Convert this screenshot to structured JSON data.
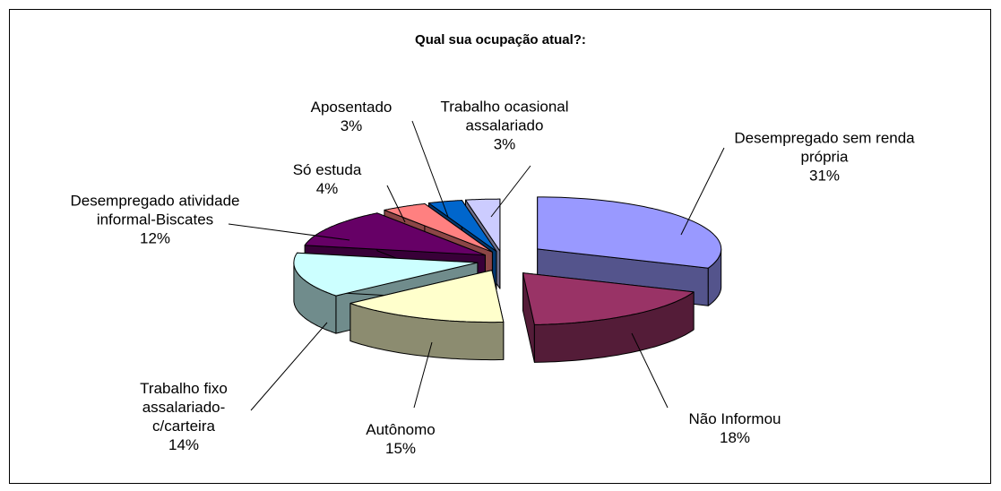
{
  "chart_data": {
    "type": "pie",
    "title": "Qual sua ocupação atual?:",
    "categories": [
      "Desempregado sem renda própria",
      "Não Informou",
      "Autônomo",
      "Trabalho fixo assalariado-c/carteira",
      "Desempregado atividade informal-Biscates",
      "Só estuda",
      "Aposentado",
      "Trabalho ocasional assalariado"
    ],
    "values": [
      31,
      18,
      15,
      14,
      12,
      4,
      3,
      3
    ],
    "value_labels": [
      "31%",
      "18%",
      "15%",
      "14%",
      "12%",
      "4%",
      "3%",
      "3%"
    ],
    "colors": [
      "#9999ff",
      "#993366",
      "#ffffcc",
      "#ccffff",
      "#660066",
      "#ff8080",
      "#0066cc",
      "#ccccff"
    ]
  }
}
